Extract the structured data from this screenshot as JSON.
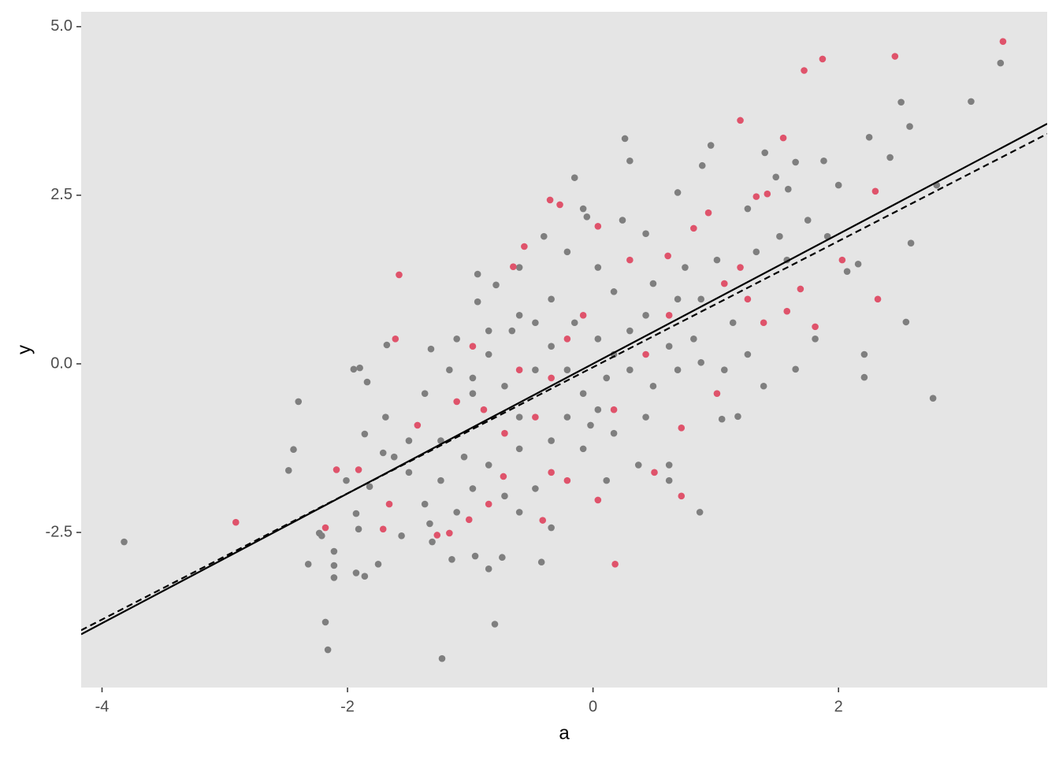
{
  "chart_data": {
    "type": "scatter",
    "x_label": "a",
    "y_label": "y",
    "xlim": [
      -4.17,
      3.7
    ],
    "ylim": [
      -4.8,
      5.22
    ],
    "xticks": [
      -4,
      -2,
      0,
      2
    ],
    "yticks": [
      -2.5,
      {
        "value": 0,
        "label": "0.0"
      },
      2.5,
      {
        "value": 5,
        "label": "5.0"
      }
    ],
    "grid": false,
    "background": "#e5e5e5",
    "series": [
      {
        "color": "#7f7f7f",
        "x": [
          -3.82,
          -2.4,
          -2.44,
          -2.48,
          -2.32,
          -2.18,
          -2.16,
          -1.23,
          -0.8,
          3.32,
          3.08,
          2.51,
          2.58,
          2.77,
          2.55,
          2.59,
          2.21,
          2.21,
          2.8,
          2.42,
          2.25,
          1.88,
          1.65,
          1.4,
          0.96,
          0.89,
          0.26,
          0.3,
          -0.15,
          -0.6,
          -0.94,
          -0.79,
          -0.94,
          -1.32,
          -1.95,
          -1.9,
          -1.84,
          -1.86,
          -1.71,
          -1.82,
          -1.93,
          -1.91,
          -2.11,
          -2.11,
          -2.11,
          -2.23,
          -2.21,
          -1.93,
          -1.86,
          -1.75,
          -1.31,
          -1.33,
          -1.15,
          -0.96,
          -0.85,
          -0.74,
          -0.42,
          0.87,
          1.18,
          1.05,
          1.65,
          1.81,
          2.07,
          2.16,
          2.0,
          1.75,
          1.59,
          1.49,
          1.26,
          0.69,
          0.43,
          0.24,
          -0.08,
          -0.05,
          -0.4,
          -0.21,
          0.04,
          0.17,
          0.49,
          0.75,
          0.88,
          1.01,
          1.33,
          1.52,
          1.91,
          1.58,
          1.14,
          0.82,
          0.62,
          0.3,
          0.04,
          -0.15,
          -0.34,
          -0.47,
          -0.66,
          -0.85,
          -0.98,
          -0.72,
          -0.47,
          -0.21,
          -0.08,
          0.11,
          0.3,
          0.49,
          0.69,
          0.88,
          1.07,
          1.26,
          1.39,
          -1.24,
          -1.05,
          -0.85,
          -0.6,
          -0.34,
          -0.08,
          0.17,
          0.43,
          0.62,
          0.37,
          0.11,
          -0.47,
          -0.72,
          -0.98,
          -1.24,
          -1.5,
          -1.62,
          -1.5,
          -1.69,
          -1.37,
          -1.17,
          -0.98,
          -0.6,
          -0.21,
          -0.02,
          -0.6,
          -0.34,
          -1.11,
          -1.37,
          -1.56,
          0.62,
          0.04,
          0.17,
          0.43,
          0.69,
          -0.34,
          -0.6,
          -0.85,
          -1.11,
          -1.68,
          -2.01
        ],
        "values": [
          -2.64,
          -0.56,
          -1.27,
          -1.58,
          -2.97,
          -3.83,
          -4.24,
          -4.37,
          -3.86,
          4.46,
          3.89,
          3.88,
          3.52,
          -0.51,
          0.62,
          1.79,
          0.14,
          -0.2,
          2.65,
          3.06,
          3.36,
          3.01,
          2.99,
          3.13,
          3.24,
          2.94,
          3.34,
          3.01,
          2.76,
          1.43,
          1.33,
          1.17,
          0.92,
          0.22,
          -0.08,
          -0.06,
          -0.27,
          -1.04,
          -1.32,
          -1.82,
          -2.22,
          -2.45,
          -2.78,
          -2.99,
          -3.17,
          -2.51,
          -2.55,
          -3.1,
          -3.15,
          -2.97,
          -2.64,
          -2.37,
          -2.9,
          -2.85,
          -3.04,
          -2.87,
          -2.94,
          -2.2,
          -0.78,
          -0.82,
          -0.08,
          0.37,
          1.37,
          1.48,
          2.65,
          2.13,
          2.59,
          2.77,
          2.3,
          2.54,
          1.93,
          2.13,
          2.3,
          2.18,
          1.89,
          1.66,
          1.43,
          1.07,
          1.19,
          1.43,
          0.96,
          1.54,
          1.66,
          1.89,
          1.89,
          1.54,
          0.61,
          0.37,
          0.26,
          0.49,
          0.37,
          0.61,
          0.26,
          0.61,
          0.49,
          0.14,
          -0.21,
          -0.33,
          -0.09,
          -0.09,
          -0.44,
          -0.21,
          -0.09,
          -0.33,
          -0.09,
          0.02,
          -0.09,
          0.14,
          -0.33,
          -1.14,
          -1.38,
          -1.5,
          -1.26,
          -1.14,
          -1.26,
          -1.03,
          -0.79,
          -1.5,
          -1.5,
          -1.73,
          -1.85,
          -1.96,
          -1.85,
          -1.73,
          -1.61,
          -1.38,
          -1.14,
          -0.79,
          -0.44,
          -0.09,
          -0.44,
          -0.79,
          -0.79,
          -0.91,
          -2.2,
          -2.43,
          -2.2,
          -2.08,
          -2.55,
          -1.73,
          -0.68,
          0.14,
          0.72,
          0.96,
          0.96,
          0.72,
          0.49,
          0.37,
          0.28,
          -1.73
        ]
      },
      {
        "color": "#df536b",
        "x": [
          3.34,
          2.46,
          1.87,
          1.72,
          1.2,
          1.55,
          -0.35,
          -0.27,
          -1.58,
          2.3,
          2.32,
          2.03,
          -2.91,
          -2.18,
          -2.09,
          -1.91,
          -1.61,
          0.18,
          0.72,
          -0.41,
          -1.27,
          -1.17,
          -1.01,
          -1.66,
          -1.71,
          0.5,
          0.72,
          0.04,
          -0.73,
          -0.85,
          -0.56,
          -0.65,
          0.3,
          0.61,
          0.82,
          0.94,
          0.04,
          -0.08,
          -0.21,
          -0.34,
          0.17,
          0.43,
          0.62,
          1.26,
          1.39,
          1.58,
          1.81,
          1.69,
          -0.98,
          -1.11,
          -1.43,
          -0.89,
          -0.6,
          -0.47,
          -0.72,
          1.07,
          1.2,
          1.33,
          1.42,
          1.01,
          -0.34,
          -0.21
        ],
        "values": [
          4.78,
          4.56,
          4.52,
          4.35,
          3.61,
          3.35,
          2.43,
          2.36,
          1.32,
          2.56,
          0.96,
          1.54,
          -2.35,
          -2.43,
          -1.57,
          -1.57,
          0.37,
          -2.97,
          -1.96,
          -2.32,
          -2.54,
          -2.51,
          -2.31,
          -2.08,
          -2.45,
          -1.61,
          -0.95,
          -2.02,
          -1.67,
          -2.08,
          1.74,
          1.44,
          1.54,
          1.6,
          2.01,
          2.24,
          2.04,
          0.72,
          0.37,
          -0.21,
          -0.68,
          0.14,
          0.72,
          0.96,
          0.61,
          0.78,
          0.55,
          1.11,
          0.26,
          -0.56,
          -0.91,
          -0.68,
          -0.09,
          -0.79,
          -1.03,
          1.19,
          1.43,
          2.48,
          2.52,
          -0.44,
          -1.61,
          -1.73
        ]
      }
    ],
    "lines": [
      {
        "color": "#000000",
        "dashed": false,
        "x": [
          -4.17,
          3.7
        ],
        "values": [
          -4.01,
          3.56
        ]
      },
      {
        "color": "#000000",
        "dashed": true,
        "x": [
          -4.17,
          3.7
        ],
        "values": [
          -3.95,
          3.41
        ]
      }
    ]
  }
}
